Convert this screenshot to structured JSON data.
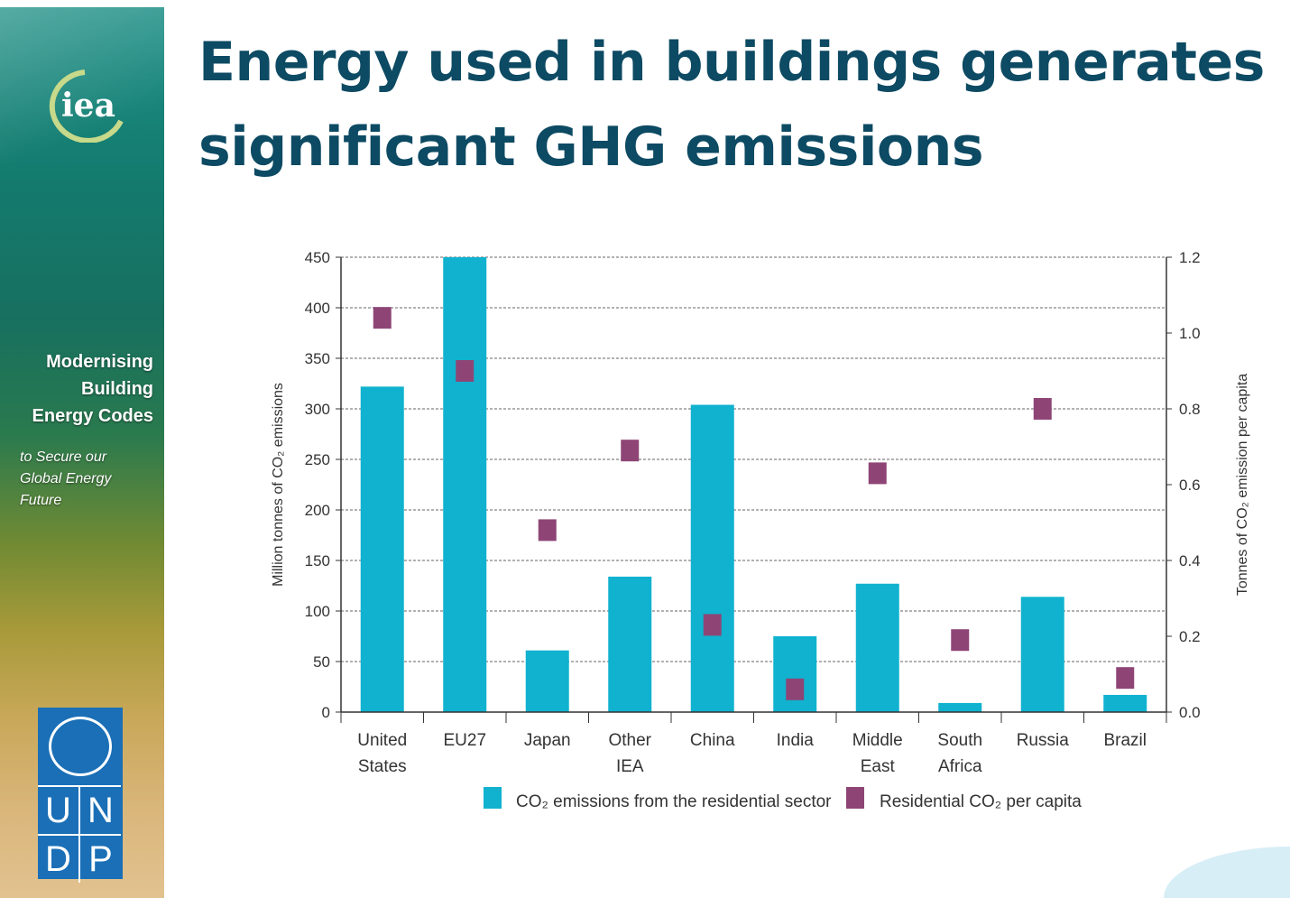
{
  "title_lines": [
    "Energy used in buildings generates",
    "significant GHG emissions"
  ],
  "sidebar": {
    "logo": "iea",
    "title_lines": [
      "Modernising",
      "Building",
      "Energy Codes"
    ],
    "subtitle_lines": [
      "to Secure our",
      "Global Energy",
      "Future"
    ],
    "undp_letters": [
      "U",
      "N",
      "D",
      "P"
    ]
  },
  "colors": {
    "bar": "#10b2cf",
    "marker": "#8e4576",
    "title": "#0d4a63"
  },
  "chart_data": {
    "type": "bar",
    "categories": [
      "United States",
      "EU27",
      "Japan",
      "Other IEA",
      "China",
      "India",
      "Middle East",
      "South Africa",
      "Russia",
      "Brazil"
    ],
    "category_lines": [
      [
        "United",
        "States"
      ],
      [
        "EU27"
      ],
      [
        "Japan"
      ],
      [
        "Other",
        "IEA"
      ],
      [
        "China"
      ],
      [
        "India"
      ],
      [
        "Middle",
        "East"
      ],
      [
        "South",
        "Africa"
      ],
      [
        "Russia"
      ],
      [
        "Brazil"
      ]
    ],
    "series": [
      {
        "name": "CO₂ emissions from the residential sector",
        "type": "bar",
        "axis": "left",
        "values": [
          322,
          450,
          61,
          134,
          304,
          75,
          127,
          9,
          114,
          17
        ]
      },
      {
        "name": "Residential CO₂ per capita",
        "type": "scatter",
        "axis": "right",
        "values": [
          1.04,
          0.9,
          0.48,
          0.69,
          0.23,
          0.06,
          0.63,
          0.19,
          0.8,
          0.09
        ]
      }
    ],
    "ylabel": "Million tonnes of CO₂ emissions",
    "y2label": "Tonnes of CO₂ emission per capita",
    "ylim": [
      0,
      450
    ],
    "yticks": [
      "0",
      "50",
      "100",
      "150",
      "200",
      "250",
      "300",
      "350",
      "400",
      "450"
    ],
    "y2lim": [
      0,
      1.2
    ],
    "y2ticks": [
      "0.0",
      "0.2",
      "0.4",
      "0.6",
      "0.8",
      "1.0",
      "1.2"
    ],
    "grid": true,
    "legend_position": "bottom"
  }
}
